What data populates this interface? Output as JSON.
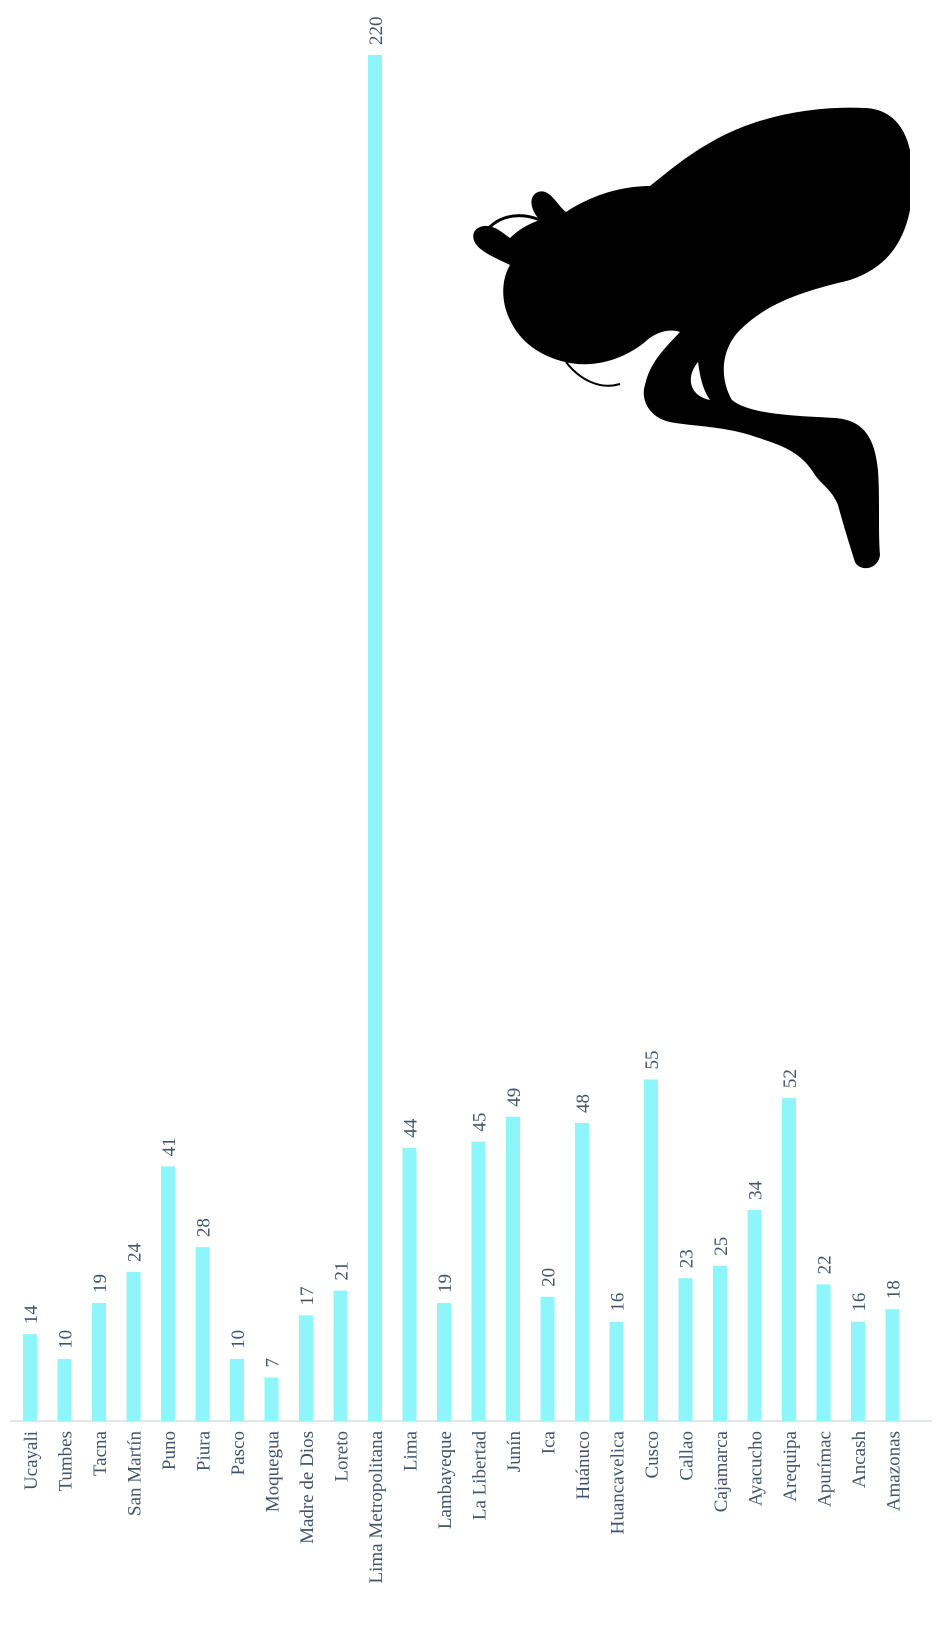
{
  "chart_data": {
    "type": "bar",
    "orientation": "vertical-bars rotated; category axis at bottom, values rising upward",
    "categories": [
      "Ucayali",
      "Tumbes",
      "Tacna",
      "San Martín",
      "Puno",
      "Piura",
      "Pasco",
      "Moquegua",
      "Madre de Dios",
      "Loreto",
      "Lima Metropolitana",
      "Lima",
      "Lambayeque",
      "La Libertad",
      "Junín",
      "Ica",
      "Huánuco",
      "Huancavelica",
      "Cusco",
      "Callao",
      "Cajamarca",
      "Ayacucho",
      "Arequipa",
      "Apurímac",
      "Ancash",
      "Amazonas"
    ],
    "values": [
      14,
      10,
      19,
      24,
      41,
      28,
      10,
      7,
      17,
      21,
      220,
      44,
      19,
      45,
      49,
      20,
      48,
      16,
      55,
      23,
      25,
      34,
      52,
      22,
      16,
      18
    ],
    "title": "",
    "xlabel": "",
    "ylabel": "",
    "ylim": [
      0,
      220
    ],
    "grid": false,
    "legend": "none",
    "bar_color": "#8ef6fa",
    "label_color": "#44546a",
    "data_labels": true
  },
  "decoration": {
    "icon": "person-silhouette-icon"
  }
}
